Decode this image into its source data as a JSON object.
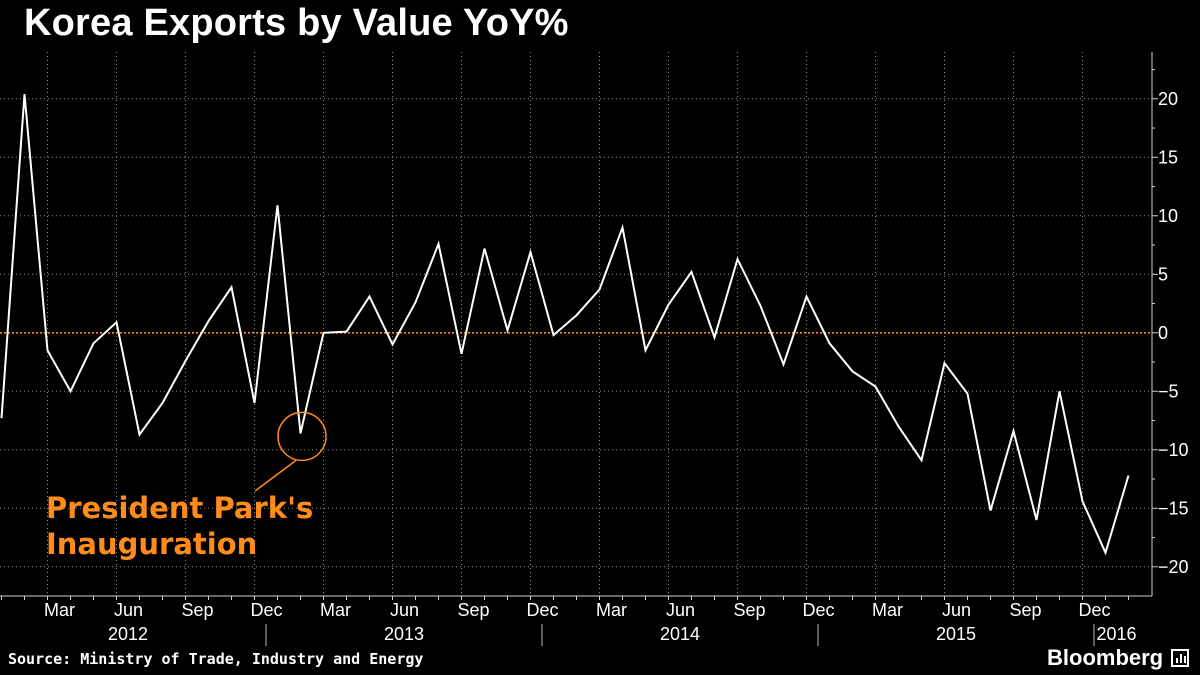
{
  "chart_data": {
    "type": "line",
    "title": "Korea Exports by Value YoY%",
    "xlabel": "",
    "ylabel": "",
    "ylim": [
      -22.5,
      24
    ],
    "y_ticks": [
      20,
      15,
      10,
      5,
      0,
      -5,
      -10,
      -15,
      -20
    ],
    "grid": true,
    "reference_line": 0,
    "month_labels": [
      "Mar",
      "Jun",
      "Sep",
      "Dec",
      "Mar",
      "Jun",
      "Sep",
      "Dec",
      "Mar",
      "Jun",
      "Sep",
      "Dec",
      "Mar",
      "Jun",
      "Sep",
      "Dec"
    ],
    "year_labels": [
      "2012",
      "2013",
      "2014",
      "2015",
      "2016"
    ],
    "series": [
      {
        "name": "Korea Exports by Value YoY%",
        "x": [
          "2012-01",
          "2012-02",
          "2012-03",
          "2012-04",
          "2012-05",
          "2012-06",
          "2012-07",
          "2012-08",
          "2012-09",
          "2012-10",
          "2012-11",
          "2012-12",
          "2013-01",
          "2013-02",
          "2013-03",
          "2013-04",
          "2013-05",
          "2013-06",
          "2013-07",
          "2013-08",
          "2013-09",
          "2013-10",
          "2013-11",
          "2013-12",
          "2014-01",
          "2014-02",
          "2014-03",
          "2014-04",
          "2014-05",
          "2014-06",
          "2014-07",
          "2014-08",
          "2014-09",
          "2014-10",
          "2014-11",
          "2014-12",
          "2015-01",
          "2015-02",
          "2015-03",
          "2015-04",
          "2015-05",
          "2015-06",
          "2015-07",
          "2015-08",
          "2015-09",
          "2015-10",
          "2015-11",
          "2015-12",
          "2016-01",
          "2016-02"
        ],
        "values": [
          -7.3,
          20.4,
          -1.5,
          -5.0,
          -0.9,
          0.9,
          -8.7,
          -6.0,
          -2.4,
          1.0,
          3.9,
          -6.0,
          10.9,
          -8.6,
          0.0,
          0.1,
          3.1,
          -1.0,
          2.6,
          7.6,
          -1.8,
          7.2,
          0.2,
          6.9,
          -0.2,
          1.5,
          3.7,
          9.0,
          -1.5,
          2.4,
          5.2,
          -0.4,
          6.3,
          2.3,
          -2.7,
          3.1,
          -0.9,
          -3.3,
          -4.6,
          -8.0,
          -10.9,
          -2.6,
          -5.2,
          -15.2,
          -8.4,
          -16.0,
          -5.0,
          -14.4,
          -18.8,
          -12.2
        ]
      }
    ],
    "annotations": [
      {
        "text_line1": "President Park's",
        "text_line2": "Inauguration",
        "target": "2013-02"
      }
    ],
    "colors": {
      "background": "#000000",
      "line": "#ffffff",
      "grid": "#8a8a8a",
      "zero_line": "#ff8c1a",
      "annotation": "#ff8c1a",
      "axis_text": "#ffffff"
    }
  },
  "footer": {
    "source": "Source: Ministry of Trade, Industry and Energy",
    "brand": "Bloomberg",
    "brand_icon": "bar-chart-icon"
  }
}
